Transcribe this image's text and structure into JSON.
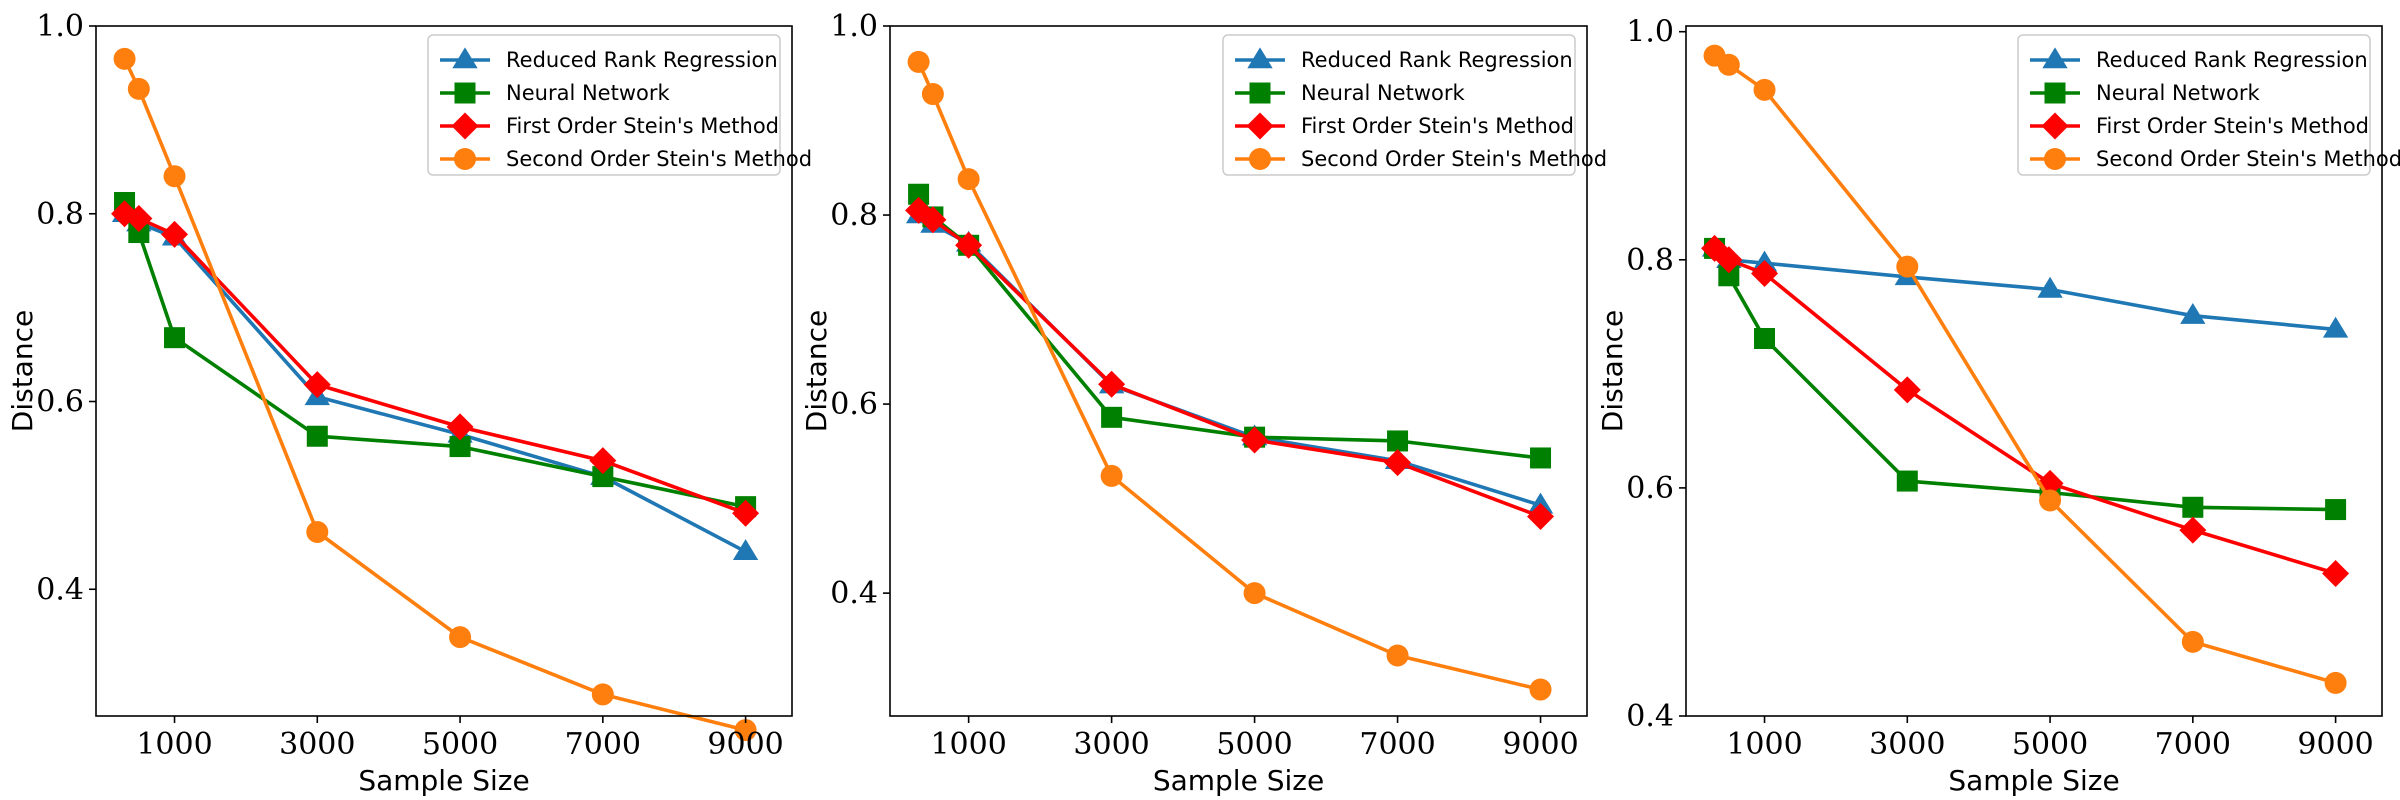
{
  "chart_data": [
    {
      "type": "line",
      "xlabel": "Sample Size",
      "ylabel": "Distance",
      "xlim": [
        -100,
        9650
      ],
      "ylim": [
        0.265,
        1.0
      ],
      "xticks": [
        1000,
        3000,
        5000,
        7000,
        9000
      ],
      "yticks": [
        0.4,
        0.6,
        0.8,
        1.0
      ],
      "ytick_labels": [
        "0.4",
        "0.6",
        "0.8",
        "1.0"
      ],
      "legend_position": "top-right",
      "x": [
        300,
        500,
        1000,
        3000,
        5000,
        7000,
        9000
      ],
      "series": [
        {
          "name": "Reduced Rank Regression",
          "color": "#1f77b4",
          "marker": "triangle",
          "values": [
            0.8,
            0.79,
            0.775,
            0.605,
            0.565,
            0.52,
            0.44
          ]
        },
        {
          "name": "Neural Network",
          "color": "#008000",
          "marker": "square",
          "values": [
            0.812,
            0.78,
            0.668,
            0.563,
            0.552,
            0.52,
            0.488
          ]
        },
        {
          "name": "First Order Stein's Method",
          "color": "#ff0000",
          "marker": "diamond",
          "values": [
            0.8,
            0.795,
            0.778,
            0.618,
            0.573,
            0.537,
            0.481
          ]
        },
        {
          "name": "Second Order Stein's Method",
          "color": "#ff7f0e",
          "marker": "circle",
          "values": [
            0.965,
            0.933,
            0.84,
            0.461,
            0.349,
            0.288,
            0.25
          ]
        }
      ]
    },
    {
      "type": "line",
      "xlabel": "Sample Size",
      "ylabel": "Distance",
      "xlim": [
        -100,
        9650
      ],
      "ylim": [
        0.27,
        1.0
      ],
      "xticks": [
        1000,
        3000,
        5000,
        7000,
        9000
      ],
      "yticks": [
        0.4,
        0.6,
        0.8,
        1.0
      ],
      "ytick_labels": [
        "0.4",
        "0.6",
        "0.8",
        "1.0"
      ],
      "legend_position": "top-right",
      "x": [
        300,
        500,
        1000,
        3000,
        5000,
        7000,
        9000
      ],
      "series": [
        {
          "name": "Reduced Rank Regression",
          "color": "#1f77b4",
          "marker": "triangle",
          "values": [
            0.8,
            0.79,
            0.77,
            0.62,
            0.565,
            0.54,
            0.493
          ]
        },
        {
          "name": "Neural Network",
          "color": "#008000",
          "marker": "square",
          "values": [
            0.822,
            0.798,
            0.768,
            0.586,
            0.565,
            0.561,
            0.543
          ]
        },
        {
          "name": "First Order Stein's Method",
          "color": "#ff0000",
          "marker": "diamond",
          "values": [
            0.805,
            0.795,
            0.768,
            0.621,
            0.562,
            0.538,
            0.481
          ]
        },
        {
          "name": "Second Order Stein's Method",
          "color": "#ff7f0e",
          "marker": "circle",
          "values": [
            0.962,
            0.928,
            0.838,
            0.524,
            0.4,
            0.334,
            0.298
          ]
        }
      ]
    },
    {
      "type": "line",
      "xlabel": "Sample Size",
      "ylabel": "Distance",
      "xlim": [
        -100,
        9650
      ],
      "ylim": [
        0.4,
        1.005
      ],
      "xticks": [
        1000,
        3000,
        5000,
        7000,
        9000
      ],
      "yticks": [
        0.4,
        0.6,
        0.8,
        1.0
      ],
      "ytick_labels": [
        "0.4",
        "0.6",
        "0.8",
        "1.0"
      ],
      "legend_position": "top-right",
      "x": [
        300,
        500,
        1000,
        3000,
        5000,
        7000,
        9000
      ],
      "series": [
        {
          "name": "Reduced Rank Regression",
          "color": "#1f77b4",
          "marker": "triangle",
          "values": [
            0.81,
            0.8,
            0.797,
            0.785,
            0.774,
            0.751,
            0.739
          ]
        },
        {
          "name": "Neural Network",
          "color": "#008000",
          "marker": "square",
          "values": [
            0.81,
            0.786,
            0.731,
            0.606,
            0.596,
            0.583,
            0.581
          ]
        },
        {
          "name": "First Order Stein's Method",
          "color": "#ff0000",
          "marker": "diamond",
          "values": [
            0.81,
            0.8,
            0.788,
            0.686,
            0.604,
            0.563,
            0.525
          ]
        },
        {
          "name": "Second Order Stein's Method",
          "color": "#ff7f0e",
          "marker": "circle",
          "values": [
            0.979,
            0.971,
            0.949,
            0.794,
            0.589,
            0.465,
            0.429
          ]
        }
      ]
    }
  ]
}
